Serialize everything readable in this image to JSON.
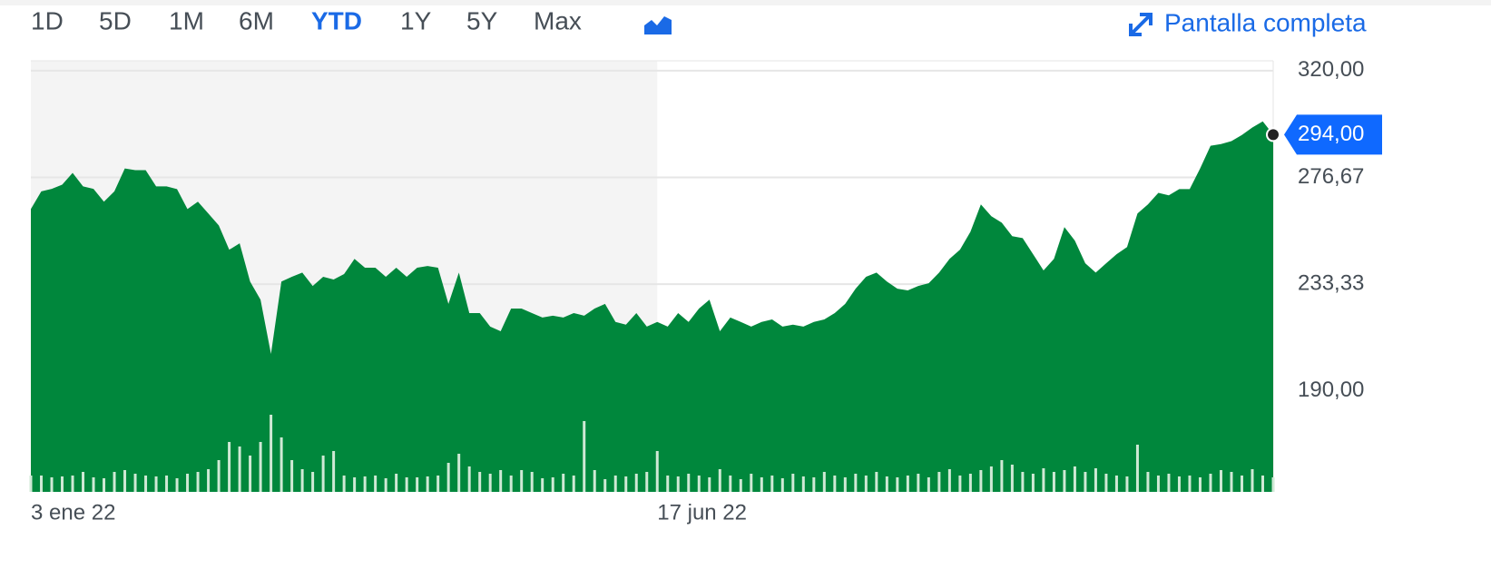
{
  "tabs": [
    "1D",
    "5D",
    "1M",
    "6M",
    "YTD",
    "1Y",
    "5Y",
    "Max"
  ],
  "selected_tab": 4,
  "fullscreen_label": "Pantalla completa",
  "chart_data": {
    "type": "area",
    "color": "#00873c",
    "categories": [
      "3 ene 22",
      null,
      null,
      null,
      null,
      null,
      null,
      null,
      null,
      null,
      null,
      null,
      null,
      null,
      null,
      null,
      null,
      null,
      null,
      null,
      null,
      null,
      null,
      null,
      null,
      null,
      null,
      null,
      null,
      null,
      null,
      null,
      null,
      null,
      null,
      null,
      null,
      null,
      null,
      null,
      null,
      null,
      null,
      null,
      null,
      null,
      null,
      null,
      null,
      null,
      null,
      null,
      null,
      null,
      null,
      null,
      null,
      null,
      null,
      null,
      "17 jun 22",
      null,
      null,
      null,
      null,
      null,
      null,
      null,
      null,
      null,
      null,
      null,
      null,
      null,
      null,
      null,
      null,
      null,
      null,
      null,
      null,
      null,
      null,
      null,
      null,
      null,
      null,
      null,
      null,
      null,
      null,
      null,
      null,
      null,
      null,
      null,
      null,
      null,
      null,
      null,
      null,
      null,
      null,
      null,
      null,
      null,
      null,
      null,
      null,
      null,
      null,
      null,
      null,
      null,
      null,
      null,
      null,
      null,
      null,
      null
    ],
    "values": [
      263.8,
      271,
      272,
      273.7,
      278.5,
      273,
      272,
      266.8,
      271,
      280.3,
      279.6,
      279.6,
      273,
      273,
      271.9,
      263.8,
      266.8,
      262,
      257.2,
      247.3,
      249.9,
      234.4,
      227,
      205,
      234.4,
      236.3,
      238,
      232.6,
      236.3,
      235.2,
      237.4,
      243.6,
      240,
      240,
      236.3,
      240,
      236.3,
      240,
      240.7,
      240,
      225.3,
      238,
      221.6,
      221.6,
      216.1,
      214.2,
      223.4,
      223.4,
      221.6,
      219.8,
      220.5,
      219.8,
      221.6,
      220.5,
      223.4,
      225.3,
      218,
      216.9,
      221.6,
      216.1,
      218,
      216.1,
      221.6,
      218,
      223.4,
      227,
      214.2,
      219.8,
      218,
      216.1,
      218,
      219,
      216.1,
      216.9,
      216.1,
      218,
      219,
      221.6,
      225.3,
      231.5,
      236.3,
      238,
      234.4,
      231.5,
      230.8,
      232.6,
      233.7,
      238,
      243.6,
      247.3,
      254.6,
      265.7,
      260.9,
      258.3,
      252.8,
      252,
      245.5,
      238.9,
      243.6,
      256.5,
      251,
      241.8,
      238,
      241.8,
      245.5,
      248.4,
      262,
      265.7,
      270.4,
      269.4,
      271.9,
      271.9,
      280.3,
      289.5,
      290.2,
      291.4,
      293.9,
      296.9,
      299.4,
      294
    ],
    "value_labels": [
      null,
      null,
      null,
      null,
      null,
      null,
      null,
      null,
      null,
      null,
      null,
      null,
      null,
      null,
      null,
      null,
      null,
      null,
      null,
      null,
      null,
      null,
      null,
      null,
      null,
      null,
      null,
      null,
      null,
      null,
      null,
      null,
      null,
      null,
      null,
      null,
      null,
      null,
      null,
      null,
      null,
      null,
      null,
      null,
      null,
      null,
      null,
      null,
      null,
      null,
      null,
      null,
      null,
      null,
      null,
      null,
      null,
      null,
      null,
      null,
      null,
      null,
      null,
      null,
      null,
      null,
      null,
      null,
      null,
      null,
      null,
      null,
      null,
      null,
      null,
      null,
      null,
      null,
      null,
      null,
      null,
      null,
      null,
      null,
      null,
      null,
      null,
      null,
      null,
      null,
      null,
      null,
      null,
      null,
      null,
      null,
      null,
      null,
      null,
      null,
      null,
      null,
      null,
      null,
      null,
      null,
      null,
      null,
      null,
      null,
      null,
      null,
      null,
      null,
      null,
      null,
      null,
      null,
      null,
      "294,00"
    ],
    "volume_values": [
      18,
      18,
      16,
      17,
      18,
      22,
      16,
      15,
      22,
      24,
      20,
      18,
      17,
      18,
      15,
      20,
      22,
      25,
      35,
      55,
      50,
      40,
      55,
      85,
      60,
      35,
      25,
      22,
      40,
      45,
      18,
      16,
      17,
      18,
      15,
      20,
      16,
      16,
      17,
      18,
      32,
      42,
      28,
      22,
      20,
      24,
      18,
      24,
      22,
      15,
      16,
      20,
      18,
      78,
      24,
      14,
      18,
      17,
      20,
      22,
      45,
      18,
      17,
      20,
      18,
      16,
      25,
      18,
      14,
      20,
      16,
      18,
      15,
      20,
      17,
      16,
      22,
      18,
      16,
      20,
      18,
      22,
      17,
      16,
      18,
      20,
      16,
      22,
      25,
      18,
      20,
      24,
      28,
      35,
      30,
      22,
      20,
      26,
      22,
      24,
      28,
      22,
      26,
      20,
      18,
      17,
      52,
      22,
      18,
      20,
      17,
      18,
      16,
      20,
      24,
      22,
      18,
      25,
      18,
      16
    ],
    "volume_color": "#cfe9d5",
    "y2lim": [
      0,
      100
    ],
    "ylim": [
      149,
      324
    ],
    "yticks": [
      {
        "value": 190,
        "label": "190,00"
      },
      {
        "value": 233.33,
        "label": "233,33"
      },
      {
        "value": 276.67,
        "label": "276,67"
      },
      {
        "value": 320,
        "label": "320,00"
      }
    ],
    "grid": true,
    "label_color": "#0f69ff"
  }
}
